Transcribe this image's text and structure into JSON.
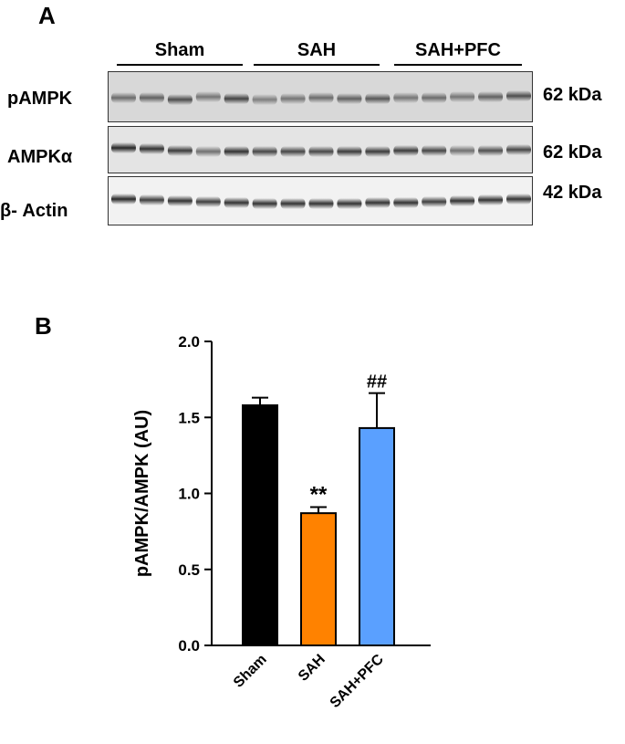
{
  "panel_a": {
    "letter": "A",
    "groups": [
      "Sham",
      "SAH",
      "SAH+PFC"
    ],
    "blots": [
      {
        "label": "pAMPK",
        "kda": "62 kDa",
        "lane_intensity": [
          0.55,
          0.6,
          0.7,
          0.5,
          0.75,
          0.45,
          0.5,
          0.55,
          0.6,
          0.65,
          0.5,
          0.55,
          0.5,
          0.6,
          0.7
        ],
        "lane_offset": [
          0,
          0,
          2,
          -1,
          1,
          2,
          1,
          0,
          1,
          1,
          0,
          0,
          -1,
          -1,
          -2
        ]
      },
      {
        "label": "AMPKα",
        "kda": "62 kDa",
        "lane_intensity": [
          0.9,
          0.85,
          0.8,
          0.55,
          0.85,
          0.75,
          0.75,
          0.75,
          0.8,
          0.8,
          0.8,
          0.75,
          0.55,
          0.7,
          0.75
        ],
        "lane_offset": [
          -3,
          -2,
          0,
          1,
          1,
          1,
          1,
          1,
          1,
          1,
          0,
          0,
          0,
          0,
          -1
        ]
      },
      {
        "label": "β- Actin",
        "kda": "42 kDa",
        "lane_intensity": [
          0.9,
          0.8,
          0.85,
          0.8,
          0.85,
          0.85,
          0.85,
          0.85,
          0.85,
          0.85,
          0.85,
          0.8,
          0.85,
          0.85,
          0.85
        ],
        "lane_offset": [
          -3,
          -2,
          -1,
          0,
          1,
          2,
          2,
          2,
          2,
          1,
          1,
          0,
          -1,
          -2,
          -3
        ]
      }
    ]
  },
  "panel_b": {
    "letter": "B"
  },
  "chart_data": {
    "type": "bar",
    "categories": [
      "Sham",
      "SAH",
      "SAH+PFC"
    ],
    "values": [
      1.58,
      0.87,
      1.43
    ],
    "errors": [
      0.05,
      0.04,
      0.23
    ],
    "annotations": [
      "",
      "**",
      "##"
    ],
    "colors": [
      "#000000",
      "#ff8200",
      "#5aa0ff"
    ],
    "ylabel": "pAMPK/AMPK (AU)",
    "ylim": [
      0,
      2.0
    ],
    "yticks": [
      0.0,
      0.5,
      1.0,
      1.5,
      2.0
    ],
    "ytick_labels": [
      "0.0",
      "0.5",
      "1.0",
      "1.5",
      "2.0"
    ]
  }
}
